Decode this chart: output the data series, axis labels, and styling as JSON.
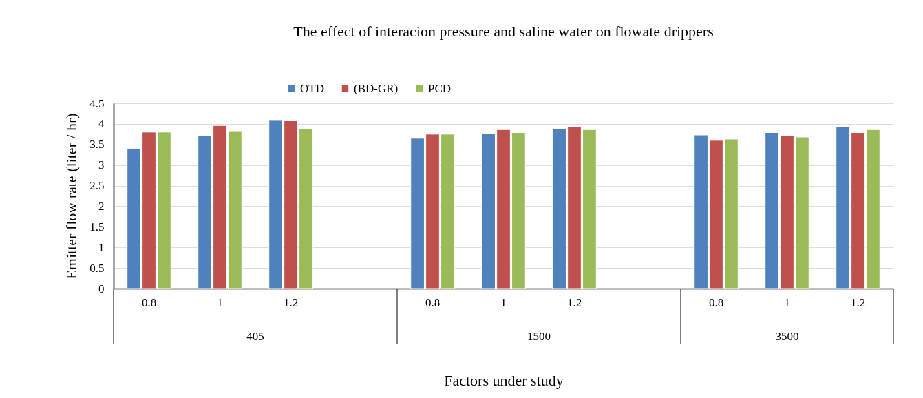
{
  "chart_data": {
    "type": "bar",
    "title": "The effect of interacion pressure and  saline water on flowate drippers",
    "xlabel": "Factors under study",
    "ylabel": "Emitter flow rate (liter / hr)",
    "categories": [
      "0.8",
      "1",
      "1.2",
      null,
      "0.8",
      "1",
      "1.2",
      null,
      "0.8",
      "1",
      "1.2"
    ],
    "annotations": [
      "405",
      "1500",
      "3500"
    ],
    "series": [
      {
        "name": "OTD",
        "color": "#4f81bd",
        "values": [
          3.4,
          3.72,
          4.1,
          null,
          3.65,
          3.77,
          3.89,
          null,
          3.73,
          3.79,
          3.93
        ]
      },
      {
        "name": "(BD-GR)",
        "color": "#c0504d",
        "values": [
          3.8,
          3.96,
          4.08,
          null,
          3.75,
          3.86,
          3.94,
          null,
          3.6,
          3.71,
          3.79
        ]
      },
      {
        "name": "PCD",
        "color": "#9bbb59",
        "values": [
          3.8,
          3.83,
          3.89,
          null,
          3.75,
          3.79,
          3.86,
          null,
          3.63,
          3.68,
          3.86
        ]
      }
    ],
    "ylim": [
      0,
      4.5
    ],
    "yticks": [
      0,
      0.5,
      1,
      1.5,
      2,
      2.5,
      3,
      3.5,
      4,
      4.5
    ],
    "grid": "y",
    "legend": "top"
  }
}
